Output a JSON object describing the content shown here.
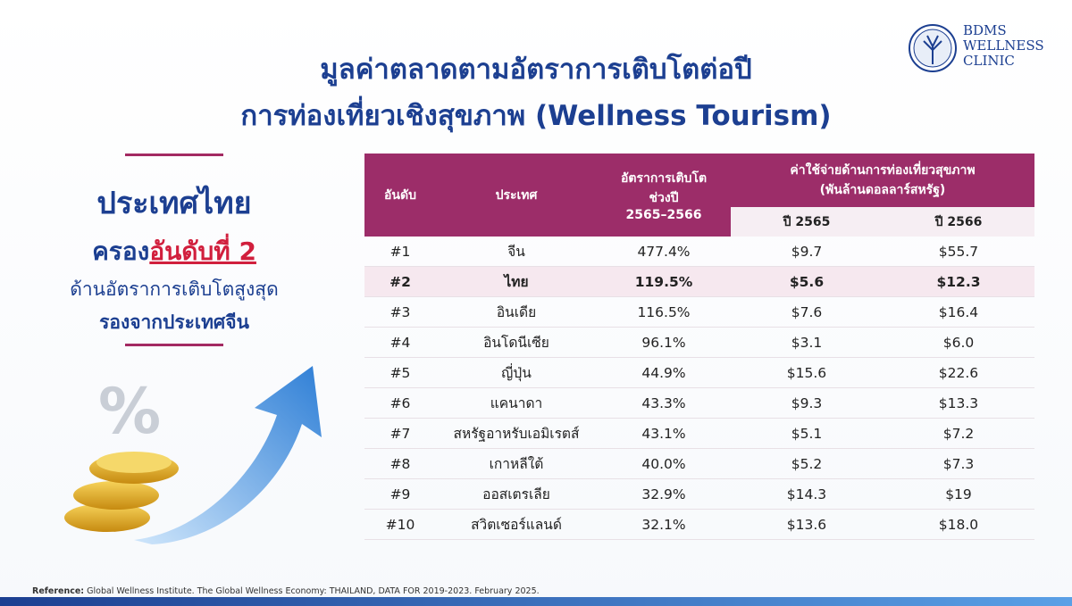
{
  "header": {
    "title_line1": "มูลค่าตลาดตามอัตราการเติบโตต่อปี",
    "title_line2": "การท่องเที่ยวเชิงสุขภาพ (Wellness Tourism)"
  },
  "logo": {
    "line1": "BDMS",
    "line2": "WELLNESS",
    "line3": "CLINIC"
  },
  "highlight": {
    "line1": "ประเทศไทย",
    "line2_prefix": "ครอง",
    "line2_emphasis": "อันดับที่ 2",
    "line3": "ด้านอัตราการเติบโตสูงสุด",
    "line4": "รองจากประเทศจีน"
  },
  "table": {
    "headers": {
      "rank": "อันดับ",
      "country": "ประเทศ",
      "growth": [
        "อัตราการเติบโต",
        "ช่วงปี",
        "2565–2566"
      ],
      "spending": [
        "ค่าใช้จ่ายด้านการท่องเที่ยวสุขภาพ",
        "(พันล้านดอลลาร์สหรัฐ)"
      ],
      "year1": "ปี 2565",
      "year2": "ปี 2566"
    },
    "rows": [
      [
        "#1",
        "จีน",
        "477.4%",
        "$9.7",
        "$55.7"
      ],
      [
        "#2",
        "ไทย",
        "119.5%",
        "$5.6",
        "$12.3"
      ],
      [
        "#3",
        "อินเดีย",
        "116.5%",
        "$7.6",
        "$16.4"
      ],
      [
        "#4",
        "อินโดนีเซีย",
        "96.1%",
        "$3.1",
        "$6.0"
      ],
      [
        "#5",
        "ญี่ปุ่น",
        "44.9%",
        "$15.6",
        "$22.6"
      ],
      [
        "#6",
        "แคนาดา",
        "43.3%",
        "$9.3",
        "$13.3"
      ],
      [
        "#7",
        "สหรัฐอาหรับเอมิเรตส์",
        "43.1%",
        "$5.1",
        "$7.2"
      ],
      [
        "#8",
        "เกาหลีใต้",
        "40.0%",
        "$5.2",
        "$7.3"
      ],
      [
        "#9",
        "ออสเตรเลีย",
        "32.9%",
        "$14.3",
        "$19"
      ],
      [
        "#10",
        "สวิตเซอร์แลนด์",
        "32.1%",
        "$13.6",
        "$18.0"
      ]
    ]
  },
  "footer": {
    "reference_label": "Reference:",
    "reference_text": "Global Wellness Institute. The Global Wellness Economy: THAILAND, DATA FOR 2019-2023. February 2025."
  }
}
